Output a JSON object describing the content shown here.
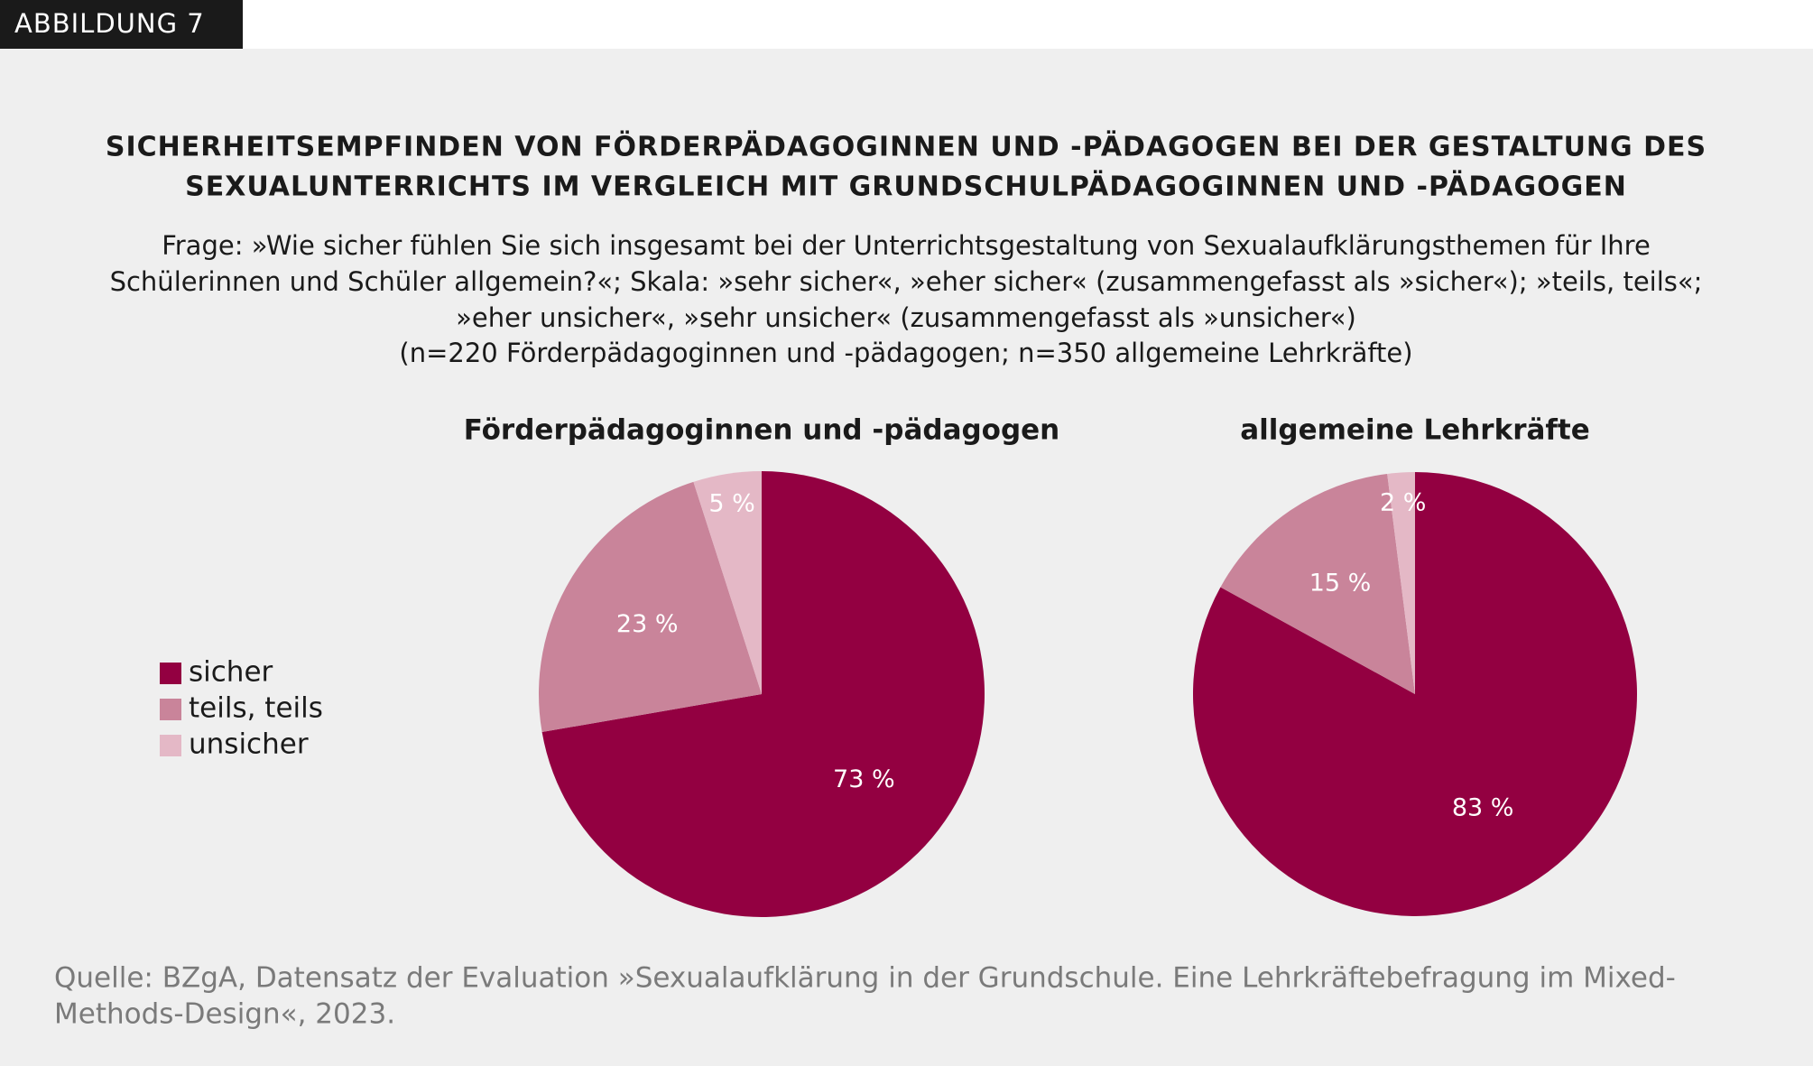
{
  "header": {
    "label": "ABBILDUNG 7"
  },
  "title": [
    "SICHERHEITSEMPFINDEN VON FÖRDERPÄDAGOGINNEN UND -PÄDAGOGEN BEI DER GESTALTUNG DES",
    "SEXUALUNTERRICHTS IM VERGLEICH MIT GRUNDSCHULPÄDAGOGINNEN UND -PÄDAGOGEN"
  ],
  "subtitle": [
    "Frage: »Wie sicher fühlen Sie sich insgesamt bei der Unterrichtsgestaltung von Sexualaufklärungsthemen für Ihre",
    "Schülerinnen und Schüler allgemein?«; Skala: »sehr sicher«, »eher sicher« (zusammengefasst als »sicher«); »teils, teils«;",
    "»eher unsicher«, »sehr unsicher« (zusammengefasst als »unsicher«)",
    "(n=220 Förderpädagoginnen und -pädagogen; n=350 allgemeine Lehrkräfte)"
  ],
  "chart_data": [
    {
      "type": "pie",
      "title": "Förderpädagoginnen und -pädagogen",
      "categories": [
        "sicher",
        "teils, teils",
        "unsicher"
      ],
      "values": [
        73,
        23,
        5
      ],
      "value_labels": [
        "73 %",
        "23 %",
        "5 %"
      ],
      "colors": [
        "#930041",
        "#c9849a",
        "#e4b8c6"
      ]
    },
    {
      "type": "pie",
      "title": "allgemeine Lehrkräfte",
      "categories": [
        "sicher",
        "teils, teils",
        "unsicher"
      ],
      "values": [
        83,
        15,
        2
      ],
      "value_labels": [
        "83 %",
        "15 %",
        "2 %"
      ],
      "colors": [
        "#930041",
        "#c9849a",
        "#e4b8c6"
      ]
    }
  ],
  "source": [
    "Quelle: BZgA, Datensatz der Evaluation »Sexualaufklärung in der Grundschule. Eine Lehrkräftebefragung im Mixed-",
    "Methods-Design«, 2023."
  ]
}
